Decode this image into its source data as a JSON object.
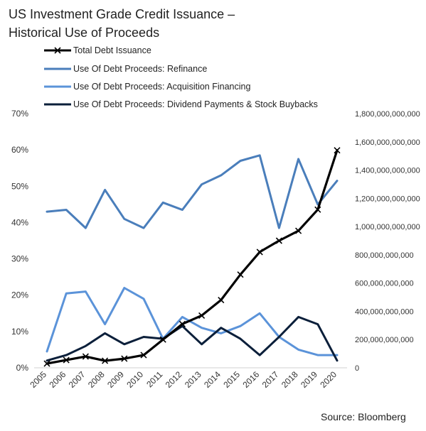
{
  "chart_data": {
    "type": "line",
    "title_lines": [
      "US Investment Grade Credit Issuance –",
      "Historical Use of Proceeds"
    ],
    "source": "Source:  Bloomberg",
    "categories": [
      "2005",
      "2006",
      "2007",
      "2008",
      "2009",
      "2010",
      "2011",
      "2012",
      "2013",
      "2014",
      "2015",
      "2016",
      "2017",
      "2018",
      "2019",
      "2020"
    ],
    "left_axis": {
      "range": [
        0,
        0.7
      ],
      "tick_values": [
        0,
        0.1,
        0.2,
        0.3,
        0.4,
        0.5,
        0.6,
        0.7
      ],
      "tick_labels": [
        "0%",
        "10%",
        "20%",
        "30%",
        "40%",
        "50%",
        "60%",
        "70%"
      ]
    },
    "right_axis": {
      "range": [
        0,
        1800000000000
      ],
      "tick_values": [
        0,
        200000000000,
        400000000000,
        600000000000,
        800000000000,
        1000000000000,
        1200000000000,
        1400000000000,
        1600000000000,
        1800000000000
      ],
      "tick_labels": [
        "0",
        "200,000,000,000",
        "400,000,000,000",
        "600,000,000,000",
        "800,000,000,000",
        "1,000,000,000,000",
        "1,200,000,000,000",
        "1,400,000,000,000",
        "1,600,000,000,000",
        "1,800,000,000,000"
      ]
    },
    "legend_position": "top-left",
    "series": [
      {
        "name": "Total Debt Issuance",
        "axis": "right",
        "color": "#000000",
        "marker": "x",
        "values": [
          30000000000,
          55000000000,
          80000000000,
          50000000000,
          65000000000,
          90000000000,
          200000000000,
          310000000000,
          370000000000,
          480000000000,
          660000000000,
          820000000000,
          900000000000,
          970000000000,
          1120000000000,
          1540000000000
        ]
      },
      {
        "name": "Use Of Debt Proceeds: Refinance",
        "axis": "left",
        "color": "#4a7ebb",
        "values": [
          0.43,
          0.435,
          0.385,
          0.49,
          0.41,
          0.385,
          0.455,
          0.435,
          0.505,
          0.53,
          0.57,
          0.585,
          0.385,
          0.575,
          0.45,
          0.515
        ]
      },
      {
        "name": "Use Of Debt Proceeds: Acquisition Financing",
        "axis": "left",
        "color": "#5b93d9",
        "values": [
          0.045,
          0.205,
          0.21,
          0.12,
          0.22,
          0.19,
          0.08,
          0.14,
          0.11,
          0.095,
          0.115,
          0.15,
          0.085,
          0.05,
          0.035,
          0.035
        ]
      },
      {
        "name": "Use Of Debt Proceeds: Dividend Payments & Stock Buybacks",
        "axis": "left",
        "color": "#0b1f3a",
        "values": [
          0.02,
          0.035,
          0.06,
          0.095,
          0.065,
          0.085,
          0.08,
          0.115,
          0.065,
          0.11,
          0.08,
          0.035,
          0.085,
          0.14,
          0.12,
          0.02
        ]
      }
    ]
  }
}
